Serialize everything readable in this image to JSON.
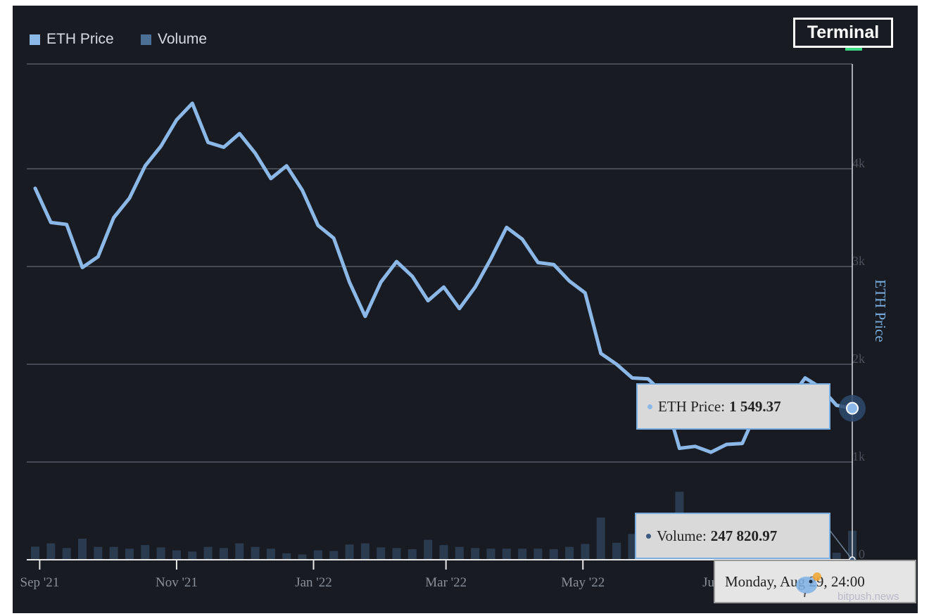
{
  "legend": [
    {
      "label": "ETH Price",
      "color": "#8cb8e8"
    },
    {
      "label": "Volume",
      "color": "#4c6f95"
    }
  ],
  "brand": "Terminal",
  "watermark": "bitpush.news",
  "tooltips": {
    "price": {
      "label": "ETH Price:",
      "value": "1 549.37"
    },
    "volume": {
      "label": "Volume:",
      "value": "247 820.97"
    },
    "date": "Monday, Aug 29, 24:00"
  },
  "chart_data": {
    "type": "line",
    "title": "",
    "ylabel": "ETH Price",
    "ylim": [
      0,
      4900
    ],
    "y_ticks": [
      "1k",
      "2k",
      "3k",
      "4k"
    ],
    "volume_tick": "0",
    "x_ticks": [
      "Sep '21",
      "Nov '21",
      "Jan '22",
      "Mar '22",
      "May '22",
      "Jul '22"
    ],
    "x": [
      "2021-08-30",
      "2021-09-06",
      "2021-09-13",
      "2021-09-20",
      "2021-09-27",
      "2021-10-04",
      "2021-10-11",
      "2021-10-18",
      "2021-10-25",
      "2021-11-01",
      "2021-11-08",
      "2021-11-15",
      "2021-11-22",
      "2021-11-29",
      "2021-12-06",
      "2021-12-13",
      "2021-12-20",
      "2021-12-27",
      "2022-01-03",
      "2022-01-10",
      "2022-01-17",
      "2022-01-24",
      "2022-01-31",
      "2022-02-07",
      "2022-02-14",
      "2022-02-21",
      "2022-02-28",
      "2022-03-07",
      "2022-03-14",
      "2022-03-21",
      "2022-03-28",
      "2022-04-04",
      "2022-04-11",
      "2022-04-18",
      "2022-04-25",
      "2022-05-02",
      "2022-05-09",
      "2022-05-16",
      "2022-05-23",
      "2022-05-30",
      "2022-06-06",
      "2022-06-13",
      "2022-06-20",
      "2022-06-27",
      "2022-07-04",
      "2022-07-11",
      "2022-07-18",
      "2022-07-25",
      "2022-08-01",
      "2022-08-08",
      "2022-08-15",
      "2022-08-22",
      "2022-08-29"
    ],
    "series": [
      {
        "name": "ETH Price",
        "color": "#8cb8e8",
        "values": [
          3800,
          3450,
          3430,
          2990,
          3100,
          3500,
          3700,
          4030,
          4230,
          4500,
          4670,
          4270,
          4220,
          4360,
          4160,
          3900,
          4030,
          3780,
          3420,
          3290,
          2840,
          2490,
          2840,
          3050,
          2900,
          2650,
          2790,
          2570,
          2790,
          3080,
          3400,
          3280,
          3040,
          3020,
          2850,
          2730,
          2110,
          2000,
          1860,
          1850,
          1700,
          1140,
          1160,
          1100,
          1180,
          1190,
          1550,
          1600,
          1640,
          1860,
          1760,
          1580,
          1549.37
        ]
      },
      {
        "name": "Volume",
        "color": "#2b3b4f",
        "values": [
          112,
          140,
          100,
          180,
          110,
          110,
          95,
          125,
          105,
          80,
          70,
          110,
          100,
          140,
          110,
          95,
          55,
          45,
          80,
          75,
          130,
          140,
          105,
          100,
          90,
          170,
          125,
          110,
          100,
          95,
          95,
          95,
          95,
          90,
          110,
          135,
          360,
          145,
          220,
          80,
          120,
          580,
          150,
          120,
          130,
          260,
          310,
          90,
          110,
          80,
          75,
          60,
          247
        ]
      }
    ]
  }
}
